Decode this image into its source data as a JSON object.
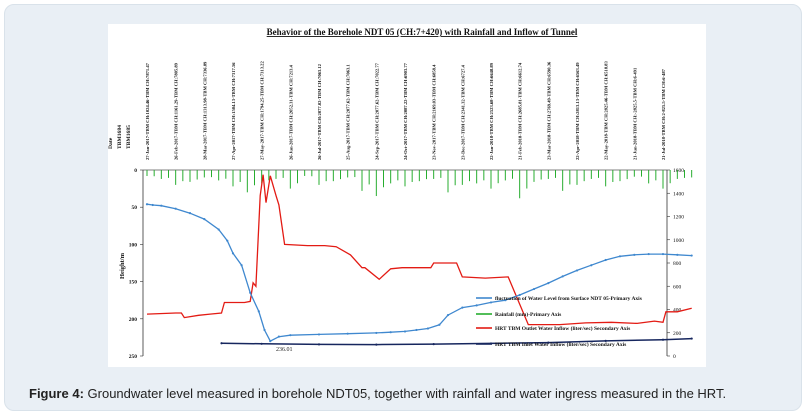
{
  "caption": {
    "label": "Figure 4:",
    "text": "Groundwater level measured in borehole NDT05, together with rainfall and water ingress measured in the HRT."
  },
  "chart_data": {
    "type": "line",
    "title": "Behavior of the Borehole NDT 05 (CH:7+420) with Rainfall and Inflow of Tunnel",
    "ylabel": "Height/m",
    "ylim": [
      250,
      0
    ],
    "y_ticks": [
      "0",
      "50",
      "100",
      "150",
      "200",
      "250"
    ],
    "secondary_ylim": [
      0,
      1600
    ],
    "secondary_y_ticks": [
      "0",
      "200",
      "400",
      "600",
      "800",
      "1000",
      "1200",
      "1400",
      "1600"
    ],
    "header_labels": [
      "Date",
      "TBM1684",
      "TBM1685"
    ],
    "x_labels": [
      "27-Jan-2017-TBM CH:1024.46-TBM CH:7871.47",
      "26-Feb-2017-TBM CH:1161.29-TBM CH:7805.89",
      "28-Mar-2017-TBM CH:1313.98-TBM CH:7336.89",
      "27-Apr-2017-TBM CH:1504.13-TBM CH:7317.56",
      "27-May-2017-TBM CH:1794.25-TBM CH:7313.22",
      "26-Jun-2017-TBM CH:2052.31-TBM CH:7213.4",
      "26-Jul-2017-TBM CH:2077.02-TBM CH:7063.12",
      "25-Aug-2017-TBM CH:2077.62-TBM CH:7063.1",
      "24-Sep-2017-TBM CH:2077.62-TBM CH:7022.77",
      "24-Oct-2017-TBM CH:2087.22-TBM CH:6903.77",
      "23-Nov-2017-TBM CH:2169.03-TBM CH:6858.4",
      "23-Dec-2017-TBM CH:2341.32-TBM CH:6727.4",
      "22-Jan-2018-TBM CH:2523.68-TBM CH:6648.89",
      "21-Feb-2018-TBM CH:2685.81-TBM CH:6612.74",
      "23-Mar-2018-TBM CH:2769.49-TBM CH:6590.36",
      "22-Apr-2018-TBM CH:2813.13-TBM CH:6563.49",
      "22-May-2018-TBM CH:2825.46-TBM CH:6518.83",
      "21-Jun-2018-TBM CH:-2825.5-TBM CH:6-491",
      "21-Jul-2018-TBM CH:2-825.5-TBM CH:6-487"
    ],
    "annotations": [
      "236.01"
    ],
    "colors": {
      "water_level": "#3f88cf",
      "rainfall": "#27ad2f",
      "inflow_hrt_tbm": "#e31b14",
      "inflow_hrt_tbm_inlet": "#16265e"
    },
    "series": [
      {
        "name": "fluctuation of Water Level from Surface NDT 05-Primary Axis",
        "axis": "primary",
        "x": [
          0,
          0.2,
          0.5,
          1,
          1.5,
          2,
          2.5,
          2.8,
          3,
          3.3,
          3.6,
          3.9,
          4.1,
          4.3,
          4.6,
          5,
          6,
          7,
          8,
          8.5,
          9,
          9.4,
          9.8,
          10.2,
          10.5,
          11,
          11.5,
          12,
          12.5,
          13,
          13.5,
          14,
          14.5,
          15,
          15.5,
          16,
          16.5,
          17,
          17.5,
          18,
          18.5,
          19
        ],
        "y": [
          46,
          47,
          48,
          52,
          58,
          66,
          80,
          95,
          112,
          128,
          165,
          190,
          215,
          230,
          224,
          222,
          221,
          220,
          219,
          218,
          217,
          215,
          213,
          208,
          195,
          185,
          182,
          178,
          175,
          168,
          160,
          152,
          143,
          135,
          128,
          121,
          116,
          114,
          113,
          113,
          114,
          115
        ]
      },
      {
        "name": "Rainfall (mm)-Primary Axis",
        "axis": "primary",
        "x": [
          0,
          0.5,
          1,
          1.5,
          2,
          2.5,
          3,
          3.5,
          4,
          4.5,
          5,
          5.5,
          6,
          6.5,
          7,
          7.5,
          8,
          8.5,
          9,
          9.5,
          10,
          10.5,
          11,
          11.5,
          12,
          12.5,
          13,
          13.5,
          14,
          14.5,
          15,
          15.5,
          16,
          16.5,
          17,
          17.5,
          18,
          18.5,
          19
        ],
        "y": [
          8,
          12,
          20,
          16,
          10,
          14,
          22,
          30,
          18,
          12,
          25,
          8,
          20,
          15,
          10,
          28,
          35,
          18,
          22,
          15,
          12,
          30,
          20,
          18,
          25,
          14,
          38,
          16,
          12,
          28,
          20,
          12,
          22,
          15,
          9,
          18,
          25,
          12,
          10
        ]
      },
      {
        "name": "HRT TBM Outlet Water Inflow (liter/sec) Secondary Axis",
        "axis": "secondary",
        "x": [
          0,
          1,
          1.2,
          1.3,
          1.8,
          2.2,
          2.6,
          2.7,
          3.4,
          3.6,
          3.7,
          3.8,
          3.95,
          4.05,
          4.15,
          4.3,
          4.5,
          4.6,
          4.8,
          5.6,
          6.2,
          6.6,
          7.1,
          7.5,
          7.6,
          8.1,
          8.5,
          8.9,
          9.9,
          10.0,
          10.8,
          11.0,
          11.8,
          12.6,
          13.3,
          14.4,
          15.3,
          16.2,
          17.1,
          17.7,
          18.0,
          18.1,
          18.5,
          19
        ],
        "y": [
          360,
          370,
          370,
          330,
          350,
          360,
          370,
          460,
          460,
          470,
          630,
          600,
          1380,
          1560,
          1320,
          1550,
          1380,
          1300,
          960,
          950,
          950,
          940,
          870,
          760,
          760,
          660,
          750,
          760,
          760,
          800,
          800,
          680,
          670,
          680,
          270,
          270,
          285,
          290,
          280,
          300,
          290,
          380,
          380,
          410
        ]
      },
      {
        "name": "HRT TBM Inlet Water Inflow (liter/sec) Secondary Axis",
        "axis": "secondary",
        "x": [
          2.6,
          4,
          6,
          8,
          10,
          12,
          14,
          16,
          18,
          19
        ],
        "y": [
          110,
          105,
          100,
          98,
          102,
          108,
          115,
          130,
          140,
          150
        ]
      }
    ]
  }
}
